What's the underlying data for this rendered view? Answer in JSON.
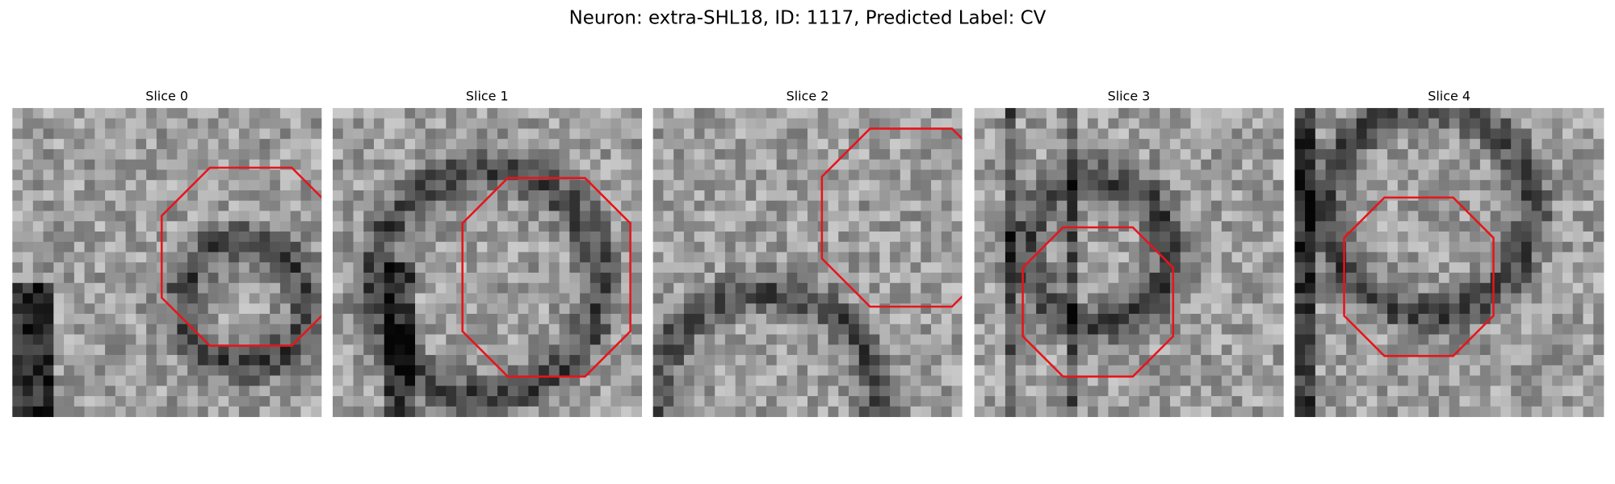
{
  "header": {
    "title": "Neuron: extra-SHL18, ID: 1117, Predicted Label: CV"
  },
  "panels": [
    {
      "title": "Slice 0"
    },
    {
      "title": "Slice 1"
    },
    {
      "title": "Slice 2"
    },
    {
      "title": "Slice 3"
    },
    {
      "title": "Slice 4"
    }
  ]
}
